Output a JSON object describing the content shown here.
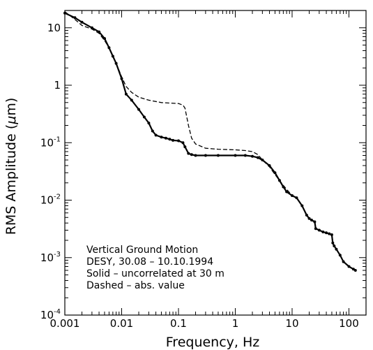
{
  "chart_data": {
    "type": "line",
    "xlabel": "Frequency,  Hz",
    "ylabel_prefix": "RMS Amplitude  (",
    "ylabel_mu": "μ",
    "ylabel_suffix": "m)",
    "x_scale": "log",
    "y_scale": "log",
    "xlim": [
      0.001,
      200
    ],
    "ylim": [
      0.0001,
      20
    ],
    "grid": false,
    "x_ticks": [
      {
        "value": 0.001,
        "label": "0.001"
      },
      {
        "value": 0.01,
        "label": "0.01"
      },
      {
        "value": 0.1,
        "label": "0.1"
      },
      {
        "value": 1,
        "label": "1"
      },
      {
        "value": 10,
        "label": "10"
      },
      {
        "value": 100,
        "label": "100"
      }
    ],
    "y_ticks": [
      {
        "value": 10,
        "label": "10",
        "exp": ""
      },
      {
        "value": 1,
        "label": "1",
        "exp": ""
      },
      {
        "value": 0.1,
        "label": "10",
        "exp": "-1"
      },
      {
        "value": 0.01,
        "label": "10",
        "exp": "-2"
      },
      {
        "value": 0.001,
        "label": "10",
        "exp": "-3"
      },
      {
        "value": 0.0001,
        "label": "10",
        "exp": "-4"
      }
    ],
    "annotations": [
      "Vertical Ground Motion",
      "DESY, 30.08 – 10.10.1994",
      "Solid – uncorrelated at 30 m",
      "Dashed – abs. value"
    ],
    "series": [
      {
        "style": "solid-markers",
        "x": [
          0.001,
          0.0015,
          0.002,
          0.003,
          0.004,
          0.005,
          0.006,
          0.007,
          0.008,
          0.01,
          0.012,
          0.015,
          0.02,
          0.025,
          0.03,
          0.035,
          0.04,
          0.05,
          0.06,
          0.07,
          0.08,
          0.1,
          0.12,
          0.13,
          0.15,
          0.17,
          0.2,
          0.3,
          0.5,
          1,
          1.5,
          2,
          2.5,
          3,
          4,
          5,
          6,
          7,
          8,
          10,
          12,
          15,
          18,
          20,
          22,
          25,
          26,
          30,
          35,
          40,
          45,
          50,
          52,
          55,
          60,
          70,
          80,
          100,
          120,
          130
        ],
        "y": [
          18,
          15,
          12.5,
          10,
          8.5,
          6.5,
          4.5,
          3.2,
          2.4,
          1.3,
          0.7,
          0.55,
          0.38,
          0.28,
          0.22,
          0.16,
          0.135,
          0.125,
          0.12,
          0.115,
          0.11,
          0.108,
          0.1,
          0.085,
          0.065,
          0.062,
          0.06,
          0.06,
          0.06,
          0.06,
          0.06,
          0.058,
          0.055,
          0.05,
          0.04,
          0.03,
          0.022,
          0.017,
          0.014,
          0.012,
          0.011,
          0.008,
          0.0055,
          0.0048,
          0.0045,
          0.0042,
          0.0032,
          0.003,
          0.0028,
          0.0027,
          0.0026,
          0.0025,
          0.0018,
          0.0016,
          0.0014,
          0.0011,
          0.00085,
          0.0007,
          0.00063,
          0.0006
        ]
      },
      {
        "style": "dashed",
        "x": [
          0.001,
          0.0015,
          0.002,
          0.003,
          0.004,
          0.005,
          0.006,
          0.007,
          0.008,
          0.01,
          0.012,
          0.015,
          0.02,
          0.03,
          0.05,
          0.07,
          0.1,
          0.12,
          0.13,
          0.15,
          0.17,
          0.2,
          0.3,
          0.5,
          1,
          1.5,
          2,
          2.5,
          3,
          4,
          5,
          7,
          10
        ],
        "y": [
          19,
          14,
          11,
          9.5,
          8,
          6,
          4.5,
          3.2,
          2.4,
          1.4,
          0.95,
          0.75,
          0.62,
          0.55,
          0.5,
          0.49,
          0.48,
          0.45,
          0.4,
          0.2,
          0.12,
          0.095,
          0.08,
          0.077,
          0.075,
          0.073,
          0.07,
          0.062,
          0.05,
          0.038,
          0.028,
          0.018,
          0.012
        ]
      }
    ]
  }
}
